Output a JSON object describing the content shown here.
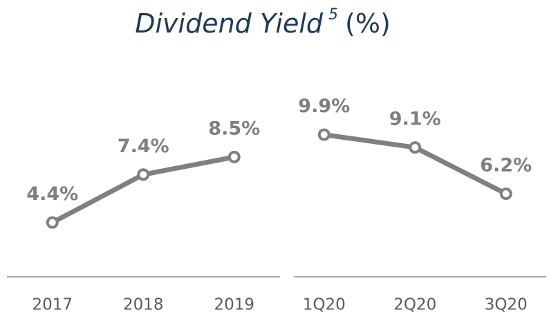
{
  "title": {
    "text": "Dividend Yield",
    "note": "5",
    "unit": "(%)"
  },
  "chart_data": [
    {
      "type": "line",
      "categories": [
        "2017",
        "2018",
        "2019"
      ],
      "values": [
        4.4,
        7.4,
        8.5
      ],
      "value_labels": [
        "4.4%",
        "7.4%",
        "8.5%"
      ],
      "color": "#808080",
      "ylim": [
        1,
        14
      ]
    },
    {
      "type": "line",
      "categories": [
        "1Q20",
        "2Q20",
        "3Q20"
      ],
      "values": [
        9.9,
        9.1,
        6.2
      ],
      "value_labels": [
        "9.9%",
        "9.1%",
        "6.2%"
      ],
      "color": "#808080",
      "ylim": [
        1,
        14
      ]
    }
  ]
}
